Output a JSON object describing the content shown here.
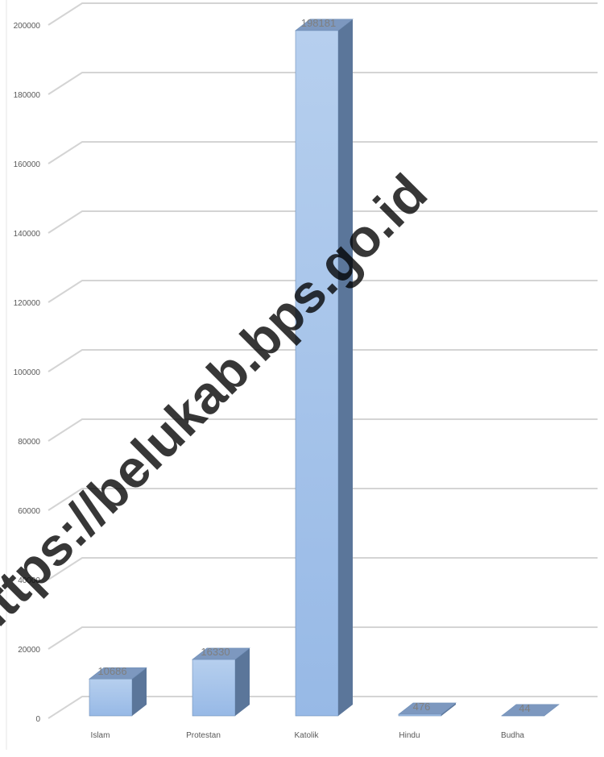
{
  "chart_data": {
    "type": "bar",
    "style": "3d-column",
    "categories": [
      "Islam",
      "Protestan",
      "Katolik",
      "Hindu",
      "Budha"
    ],
    "values": [
      10686,
      16330,
      198181,
      476,
      44
    ],
    "data_labels": [
      "10686",
      "16330",
      "198181",
      "476",
      "44"
    ],
    "yticks": [
      0,
      20000,
      40000,
      60000,
      80000,
      100000,
      120000,
      140000,
      160000,
      180000,
      200000
    ],
    "ylim": [
      0,
      200000
    ],
    "grid": true,
    "legend": "none",
    "colors": {
      "bar_front_top": "#b6cfee",
      "bar_front_bottom": "#97b9e6",
      "bar_side": "#5b769a",
      "bar_top": "#7d98bf",
      "grid": "#d4d4d4",
      "text": "#595959"
    }
  },
  "watermark": "https://belukab.bps.go.id"
}
